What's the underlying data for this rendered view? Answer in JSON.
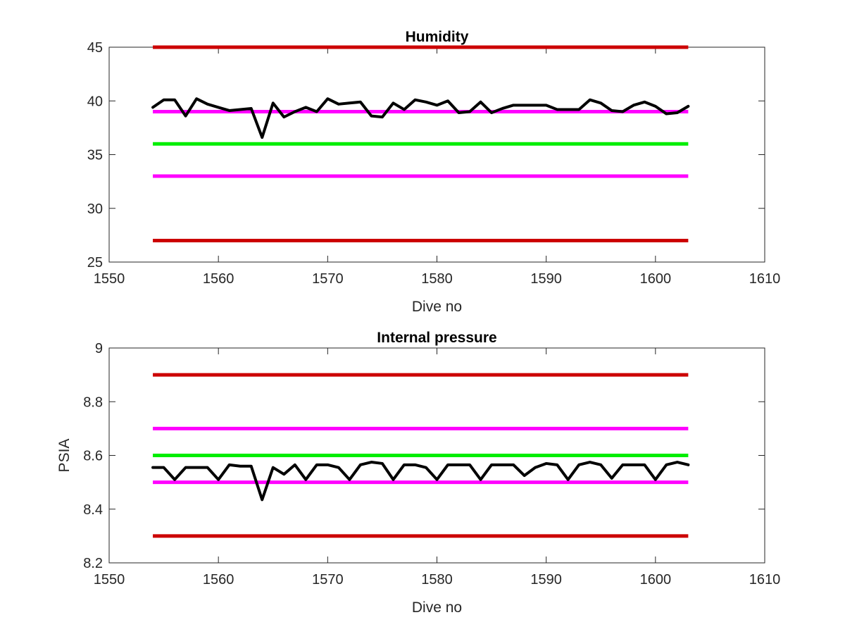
{
  "figure": {
    "background": "#ffffff"
  },
  "chart_data": [
    {
      "type": "line",
      "title": "Humidity",
      "xlabel": "Dive no",
      "ylabel": "",
      "xlim": [
        1550,
        1610
      ],
      "ylim": [
        25,
        45
      ],
      "xticks": [
        "1550",
        "1560",
        "1570",
        "1580",
        "1590",
        "1600",
        "1610"
      ],
      "yticks": [
        "25",
        "30",
        "35",
        "40",
        "45"
      ],
      "grid": false,
      "reference_lines": [
        {
          "y": 45,
          "x_range": [
            1554,
            1603
          ],
          "color": "#cc0000"
        },
        {
          "y": 39,
          "x_range": [
            1554,
            1603
          ],
          "color": "#ff00ff"
        },
        {
          "y": 36,
          "x_range": [
            1554,
            1603
          ],
          "color": "#00ee00"
        },
        {
          "y": 33,
          "x_range": [
            1554,
            1603
          ],
          "color": "#ff00ff"
        },
        {
          "y": 27,
          "x_range": [
            1554,
            1603
          ],
          "color": "#cc0000"
        }
      ],
      "series": [
        {
          "color": "#000000",
          "x": [
            1554,
            1555,
            1556,
            1557,
            1558,
            1559,
            1560,
            1561,
            1562,
            1563,
            1564,
            1565,
            1566,
            1567,
            1568,
            1569,
            1570,
            1571,
            1572,
            1573,
            1574,
            1575,
            1576,
            1577,
            1578,
            1579,
            1580,
            1581,
            1582,
            1583,
            1584,
            1585,
            1586,
            1587,
            1588,
            1589,
            1590,
            1591,
            1592,
            1593,
            1594,
            1595,
            1596,
            1597,
            1598,
            1599,
            1600,
            1601,
            1602,
            1603
          ],
          "values": [
            39.4,
            40.1,
            40.1,
            38.6,
            40.2,
            39.7,
            39.4,
            39.1,
            39.2,
            39.3,
            36.6,
            39.8,
            38.5,
            39.0,
            39.4,
            39.0,
            40.2,
            39.7,
            39.8,
            39.9,
            38.6,
            38.5,
            39.8,
            39.2,
            40.1,
            39.9,
            39.6,
            40.0,
            38.9,
            39.0,
            39.9,
            38.9,
            39.3,
            39.6,
            39.6,
            39.6,
            39.6,
            39.2,
            39.2,
            39.2,
            40.1,
            39.8,
            39.1,
            39.0,
            39.6,
            39.9,
            39.5,
            38.8,
            38.9,
            39.5
          ]
        }
      ]
    },
    {
      "type": "line",
      "title": "Internal pressure",
      "xlabel": "Dive no",
      "ylabel": "PSIA",
      "xlim": [
        1550,
        1610
      ],
      "ylim": [
        8.2,
        9
      ],
      "xticks": [
        "1550",
        "1560",
        "1570",
        "1580",
        "1590",
        "1600",
        "1610"
      ],
      "yticks": [
        "8.2",
        "8.4",
        "8.6",
        "8.8",
        "9"
      ],
      "grid": false,
      "reference_lines": [
        {
          "y": 8.9,
          "x_range": [
            1554,
            1603
          ],
          "color": "#cc0000"
        },
        {
          "y": 8.7,
          "x_range": [
            1554,
            1603
          ],
          "color": "#ff00ff"
        },
        {
          "y": 8.6,
          "x_range": [
            1554,
            1603
          ],
          "color": "#00ee00"
        },
        {
          "y": 8.5,
          "x_range": [
            1554,
            1603
          ],
          "color": "#ff00ff"
        },
        {
          "y": 8.3,
          "x_range": [
            1554,
            1603
          ],
          "color": "#cc0000"
        }
      ],
      "series": [
        {
          "color": "#000000",
          "x": [
            1554,
            1555,
            1556,
            1557,
            1558,
            1559,
            1560,
            1561,
            1562,
            1563,
            1564,
            1565,
            1566,
            1567,
            1568,
            1569,
            1570,
            1571,
            1572,
            1573,
            1574,
            1575,
            1576,
            1577,
            1578,
            1579,
            1580,
            1581,
            1582,
            1583,
            1584,
            1585,
            1586,
            1587,
            1588,
            1589,
            1590,
            1591,
            1592,
            1593,
            1594,
            1595,
            1596,
            1597,
            1598,
            1599,
            1600,
            1601,
            1602,
            1603
          ],
          "values": [
            8.555,
            8.555,
            8.51,
            8.555,
            8.555,
            8.555,
            8.51,
            8.565,
            8.56,
            8.56,
            8.435,
            8.555,
            8.53,
            8.565,
            8.51,
            8.565,
            8.565,
            8.555,
            8.51,
            8.565,
            8.575,
            8.57,
            8.51,
            8.565,
            8.565,
            8.555,
            8.51,
            8.565,
            8.565,
            8.565,
            8.51,
            8.565,
            8.565,
            8.565,
            8.525,
            8.555,
            8.57,
            8.565,
            8.51,
            8.565,
            8.575,
            8.565,
            8.515,
            8.565,
            8.565,
            8.565,
            8.51,
            8.565,
            8.575,
            8.565
          ]
        }
      ]
    }
  ]
}
